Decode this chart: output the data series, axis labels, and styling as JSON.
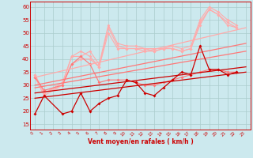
{
  "background_color": "#cce9ee",
  "grid_color": "#aacccc",
  "line_light": "#ffaaaa",
  "line_mid": "#ff7777",
  "line_dark": "#cc0000",
  "xlabel": "Vent moyen/en rafales ( km/h )",
  "ylim": [
    13,
    62
  ],
  "xlim": [
    -0.5,
    23.5
  ],
  "yticks": [
    15,
    20,
    25,
    30,
    35,
    40,
    45,
    50,
    55,
    60
  ],
  "xticks": [
    0,
    1,
    2,
    3,
    4,
    5,
    6,
    7,
    8,
    9,
    10,
    11,
    12,
    13,
    14,
    15,
    16,
    17,
    18,
    19,
    20,
    21,
    22,
    23
  ],
  "rafales1_x": [
    0,
    1,
    3,
    4,
    5,
    6,
    7,
    8,
    9,
    10,
    11,
    12,
    13,
    14,
    15,
    16,
    17,
    18,
    19,
    20,
    21,
    22
  ],
  "rafales1_y": [
    34,
    27,
    31,
    41,
    41,
    43,
    38,
    53,
    46,
    45,
    45,
    44,
    44,
    44,
    45,
    44,
    45,
    55,
    60,
    58,
    55,
    53
  ],
  "rafales2_x": [
    0,
    1,
    3,
    4,
    5,
    6,
    7,
    8,
    9,
    10,
    11,
    12,
    13,
    14,
    15,
    16,
    17,
    18,
    19,
    20,
    21,
    22
  ],
  "rafales2_y": [
    34,
    27,
    30,
    41,
    43,
    41,
    37,
    52,
    45,
    44,
    44,
    44,
    43,
    44,
    44,
    43,
    44,
    54,
    59,
    57,
    54,
    52
  ],
  "rafales3_x": [
    0,
    1,
    3,
    4,
    5,
    6,
    7,
    8,
    9,
    10,
    11,
    12,
    13,
    14,
    15,
    16,
    17,
    18,
    19,
    20,
    21,
    22
  ],
  "rafales3_y": [
    33,
    26,
    30,
    38,
    40,
    40,
    37,
    50,
    44,
    44,
    44,
    43,
    43,
    44,
    44,
    43,
    44,
    53,
    59,
    57,
    53,
    52
  ],
  "vent_var_x": [
    0,
    1,
    3,
    4,
    5,
    6,
    7,
    8,
    9,
    10,
    11,
    12,
    13,
    14,
    15,
    16,
    17,
    18,
    19,
    20,
    21,
    22
  ],
  "vent_var_y": [
    33,
    28,
    30,
    38,
    41,
    38,
    31,
    32,
    32,
    32,
    31,
    30,
    30,
    31,
    32,
    33,
    34,
    35,
    36,
    36,
    35,
    35
  ],
  "vent_dark_x": [
    0,
    1,
    3,
    4,
    5,
    6,
    7,
    8,
    9,
    10,
    11,
    12,
    13,
    14,
    15,
    16,
    17,
    18,
    19,
    20,
    21,
    22
  ],
  "vent_dark_y": [
    19,
    26,
    19,
    20,
    27,
    20,
    23,
    25,
    26,
    32,
    31,
    27,
    26,
    29,
    32,
    35,
    34,
    45,
    36,
    36,
    34,
    35
  ],
  "trend_light_y0": 33,
  "trend_light_y1": 52,
  "trend_mid1_y0": 30,
  "trend_mid1_y1": 46,
  "trend_mid2_y0": 29,
  "trend_mid2_y1": 43,
  "trend_dark1_y0": 27,
  "trend_dark1_y1": 37,
  "trend_dark2_y0": 25,
  "trend_dark2_y1": 35
}
